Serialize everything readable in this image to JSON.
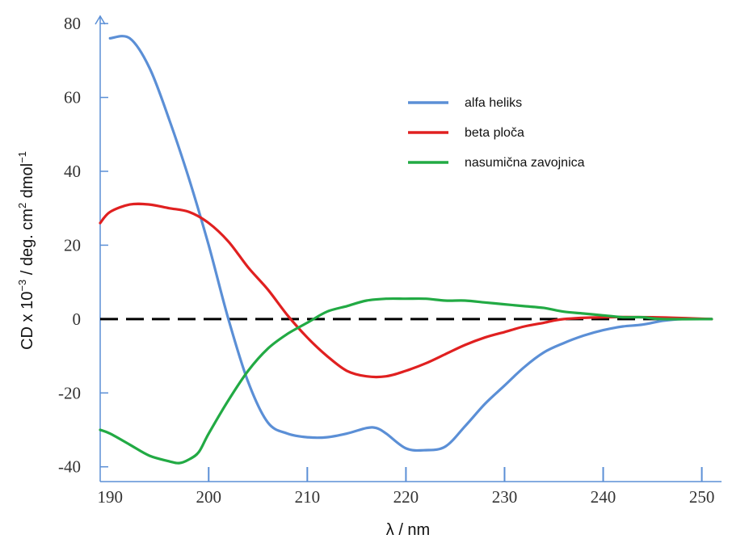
{
  "chart_data": {
    "type": "line",
    "title": "",
    "xlabel": "λ / nm",
    "ylabel": {
      "base": "CD x 10",
      "exp1": "−3",
      "mid": " / deg. cm",
      "exp2": "2",
      "tail": " dmol",
      "exp3": "−1"
    },
    "xlim": [
      189,
      252
    ],
    "ylim": [
      -44,
      82
    ],
    "x_ticks": [
      190,
      200,
      210,
      220,
      230,
      240,
      250
    ],
    "y_ticks": [
      80,
      60,
      40,
      20,
      0,
      -20,
      -40
    ],
    "x_tick_labels": [
      "190",
      "200",
      "210",
      "220",
      "230",
      "240",
      "250"
    ],
    "y_tick_labels": [
      "80",
      "60",
      "40",
      "20",
      "0",
      "-20",
      "-40"
    ],
    "grid": false,
    "zero_line": {
      "y": 0,
      "style": "dashed",
      "color": "#000000"
    },
    "legend_position": "top-right",
    "series": [
      {
        "name": "alfa heliks",
        "color": "#5b8fd6",
        "points": [
          [
            190,
            76
          ],
          [
            192,
            76
          ],
          [
            194,
            68
          ],
          [
            196,
            54
          ],
          [
            198,
            38
          ],
          [
            200,
            20
          ],
          [
            202,
            0
          ],
          [
            204,
            -17
          ],
          [
            206,
            -28
          ],
          [
            208,
            -31
          ],
          [
            210,
            -32
          ],
          [
            212,
            -32
          ],
          [
            214,
            -31
          ],
          [
            216,
            -29.5
          ],
          [
            217,
            -29.5
          ],
          [
            218,
            -31
          ],
          [
            220,
            -35
          ],
          [
            222,
            -35.5
          ],
          [
            224,
            -34.5
          ],
          [
            226,
            -29
          ],
          [
            228,
            -23
          ],
          [
            230,
            -18
          ],
          [
            232,
            -13
          ],
          [
            234,
            -9
          ],
          [
            236,
            -6.5
          ],
          [
            238,
            -4.5
          ],
          [
            240,
            -3
          ],
          [
            242,
            -2
          ],
          [
            244,
            -1.5
          ],
          [
            246,
            -0.5
          ],
          [
            248,
            0
          ],
          [
            251,
            0
          ]
        ]
      },
      {
        "name": "beta ploča",
        "color": "#e02020",
        "points": [
          [
            189,
            26
          ],
          [
            190,
            29
          ],
          [
            192,
            31
          ],
          [
            194,
            31
          ],
          [
            196,
            30
          ],
          [
            198,
            29
          ],
          [
            200,
            26
          ],
          [
            202,
            21
          ],
          [
            204,
            14
          ],
          [
            206,
            8
          ],
          [
            208,
            1
          ],
          [
            210,
            -5
          ],
          [
            212,
            -10
          ],
          [
            214,
            -14
          ],
          [
            216,
            -15.5
          ],
          [
            218,
            -15.5
          ],
          [
            220,
            -14
          ],
          [
            222,
            -12
          ],
          [
            224,
            -9.5
          ],
          [
            226,
            -7
          ],
          [
            228,
            -5
          ],
          [
            230,
            -3.5
          ],
          [
            232,
            -2
          ],
          [
            234,
            -1
          ],
          [
            236,
            0
          ],
          [
            240,
            0.5
          ],
          [
            245,
            0.5
          ],
          [
            251,
            0
          ]
        ]
      },
      {
        "name": "nasumična zavojnica",
        "color": "#22aa44",
        "points": [
          [
            189,
            -30
          ],
          [
            190,
            -31
          ],
          [
            192,
            -34
          ],
          [
            194,
            -37
          ],
          [
            196,
            -38.5
          ],
          [
            197,
            -39
          ],
          [
            198,
            -38
          ],
          [
            199,
            -36
          ],
          [
            200,
            -31
          ],
          [
            202,
            -22
          ],
          [
            204,
            -14
          ],
          [
            206,
            -8
          ],
          [
            208,
            -4
          ],
          [
            210,
            -1
          ],
          [
            212,
            2
          ],
          [
            214,
            3.5
          ],
          [
            216,
            5
          ],
          [
            218,
            5.5
          ],
          [
            220,
            5.5
          ],
          [
            222,
            5.5
          ],
          [
            224,
            5
          ],
          [
            226,
            5
          ],
          [
            228,
            4.5
          ],
          [
            230,
            4
          ],
          [
            232,
            3.5
          ],
          [
            234,
            3
          ],
          [
            236,
            2
          ],
          [
            238,
            1.5
          ],
          [
            240,
            1
          ],
          [
            242,
            0.5
          ],
          [
            244,
            0.5
          ],
          [
            246,
            0
          ],
          [
            251,
            0
          ]
        ]
      }
    ]
  }
}
